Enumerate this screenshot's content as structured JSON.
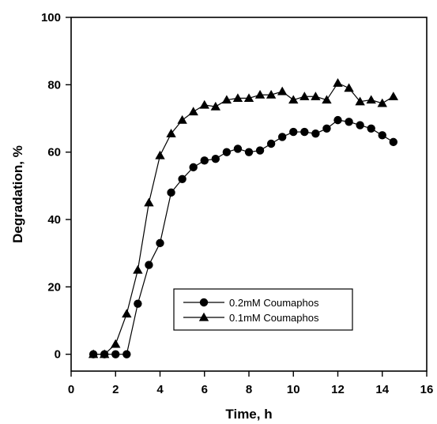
{
  "chart_data": {
    "type": "line",
    "title": "",
    "xlabel": "Time, h",
    "ylabel": "Degradation, %",
    "xlim": [
      0,
      16
    ],
    "ylim": [
      -5,
      100
    ],
    "xticks": [
      0,
      2,
      4,
      6,
      8,
      10,
      12,
      14,
      16
    ],
    "yticks": [
      0,
      20,
      40,
      60,
      80,
      100
    ],
    "grid": false,
    "legend_position": "lower-center",
    "series": [
      {
        "name": "0.2mM Coumaphos",
        "marker": "circle",
        "color": "#000000",
        "x": [
          1,
          1.5,
          2,
          2.5,
          3,
          3.5,
          4,
          4.5,
          5,
          5.5,
          6,
          6.5,
          7,
          7.5,
          8,
          8.5,
          9,
          9.5,
          10,
          10.5,
          11,
          11.5,
          12,
          12.5,
          13,
          13.5,
          14,
          14.5
        ],
        "y": [
          0,
          0,
          0,
          0,
          15,
          26.5,
          33,
          48,
          52,
          55.5,
          57.5,
          58,
          60,
          61,
          60,
          60.5,
          62.5,
          64.5,
          66,
          66,
          65.5,
          67,
          69.5,
          69,
          68,
          67,
          65,
          63
        ]
      },
      {
        "name": "0.1mM Coumaphos",
        "marker": "triangle",
        "color": "#000000",
        "x": [
          1,
          1.5,
          2,
          2.5,
          3,
          3.5,
          4,
          4.5,
          5,
          5.5,
          6,
          6.5,
          7,
          7.5,
          8,
          8.5,
          9,
          9.5,
          10,
          10.5,
          11,
          11.5,
          12,
          12.5,
          13,
          13.5,
          14,
          14.5
        ],
        "y": [
          0,
          0,
          3,
          12,
          25,
          45,
          59,
          65.5,
          69.5,
          72,
          74,
          73.5,
          75.5,
          76,
          76,
          77,
          77,
          78,
          75.5,
          76.5,
          76.5,
          75.5,
          80.5,
          79,
          75,
          75.5,
          74.5,
          76.5
        ]
      }
    ]
  }
}
